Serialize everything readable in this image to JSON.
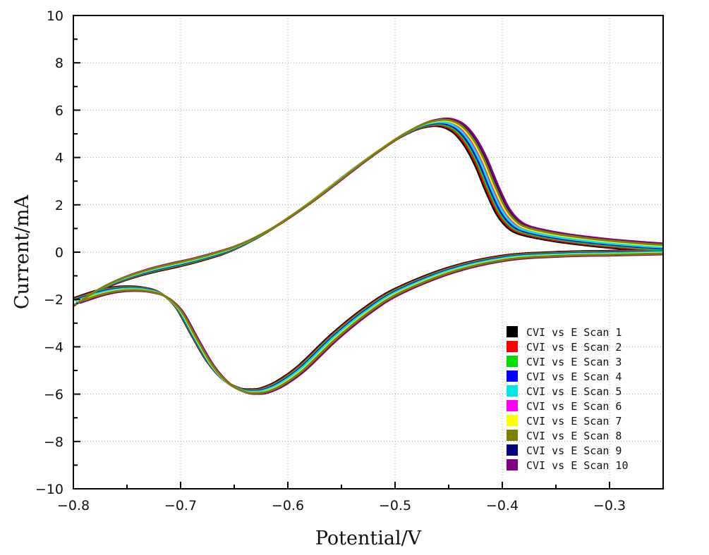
{
  "chart_data": {
    "type": "line",
    "title": "",
    "xlabel": "Potential/V",
    "ylabel": "Current/mA",
    "xlim": [
      -0.8,
      -0.25
    ],
    "ylim": [
      -10,
      10
    ],
    "x_ticks": [
      -0.8,
      -0.7,
      -0.6,
      -0.5,
      -0.4,
      -0.3
    ],
    "x_tick_labels": [
      "−0.8",
      "−0.7",
      "−0.6",
      "−0.5",
      "−0.4",
      "−0.3"
    ],
    "y_ticks": [
      -10,
      -8,
      -6,
      -4,
      -2,
      0,
      2,
      4,
      6,
      8,
      10
    ],
    "y_tick_labels": [
      "−10",
      "−8",
      "−6",
      "−4",
      "−2",
      "0",
      "2",
      "4",
      "6",
      "8",
      "10"
    ],
    "grid": true,
    "legend_position": "bottom-right",
    "forward_scan": {
      "x": [
        -0.8,
        -0.78,
        -0.76,
        -0.74,
        -0.72,
        -0.7,
        -0.68,
        -0.66,
        -0.64,
        -0.62,
        -0.6,
        -0.58,
        -0.56,
        -0.54,
        -0.52,
        -0.5,
        -0.48,
        -0.465,
        -0.455,
        -0.445,
        -0.435,
        -0.425,
        -0.415,
        -0.405,
        -0.395,
        -0.385,
        -0.37,
        -0.35,
        -0.33,
        -0.31,
        -0.29,
        -0.27,
        -0.25
      ],
      "y": [
        -2.1,
        -1.55,
        -1.15,
        -0.85,
        -0.62,
        -0.42,
        -0.18,
        0.1,
        0.5,
        1.0,
        1.6,
        2.25,
        2.95,
        3.65,
        4.3,
        4.9,
        5.35,
        5.5,
        5.45,
        5.2,
        4.65,
        3.8,
        2.7,
        1.75,
        1.2,
        0.95,
        0.78,
        0.62,
        0.5,
        0.4,
        0.32,
        0.25,
        0.2
      ]
    },
    "reverse_scan": {
      "x": [
        -0.25,
        -0.3,
        -0.35,
        -0.4,
        -0.45,
        -0.5,
        -0.53,
        -0.56,
        -0.59,
        -0.61,
        -0.625,
        -0.635,
        -0.645,
        -0.66,
        -0.675,
        -0.69,
        -0.705,
        -0.72,
        -0.735,
        -0.75,
        -0.765,
        -0.78,
        -0.8
      ],
      "y": [
        0.0,
        -0.05,
        -0.1,
        -0.25,
        -0.75,
        -1.65,
        -2.5,
        -3.6,
        -4.9,
        -5.55,
        -5.85,
        -5.9,
        -5.85,
        -5.5,
        -4.75,
        -3.6,
        -2.4,
        -1.8,
        -1.6,
        -1.55,
        -1.6,
        -1.75,
        -2.05
      ]
    },
    "series": [
      {
        "name": "CVI vs E Scan 1",
        "color": "#000000",
        "offset_x": 0.0,
        "offset_y": -0.17
      },
      {
        "name": "CVI vs E Scan 2",
        "color": "#ff0000",
        "offset_x": 0.0012,
        "offset_y": -0.13
      },
      {
        "name": "CVI vs E Scan 3",
        "color": "#00dd00",
        "offset_x": 0.0024,
        "offset_y": -0.09
      },
      {
        "name": "CVI vs E Scan 4",
        "color": "#0000ff",
        "offset_x": 0.0036,
        "offset_y": -0.05
      },
      {
        "name": "CVI vs E Scan 5",
        "color": "#00e5e5",
        "offset_x": 0.0048,
        "offset_y": -0.01
      },
      {
        "name": "CVI vs E Scan 6",
        "color": "#ff00ff",
        "offset_x": 0.006,
        "offset_y": 0.03
      },
      {
        "name": "CVI vs E Scan 7",
        "color": "#ffff00",
        "offset_x": 0.0072,
        "offset_y": 0.06
      },
      {
        "name": "CVI vs E Scan 8",
        "color": "#808000",
        "offset_x": 0.0084,
        "offset_y": 0.09
      },
      {
        "name": "CVI vs E Scan 9",
        "color": "#000080",
        "offset_x": 0.0096,
        "offset_y": 0.12
      },
      {
        "name": "CVI vs E Scan 10",
        "color": "#800080",
        "offset_x": 0.0108,
        "offset_y": 0.14
      }
    ],
    "draw_order": [
      8,
      9,
      0,
      1,
      5,
      2,
      3,
      4,
      6,
      7
    ]
  }
}
